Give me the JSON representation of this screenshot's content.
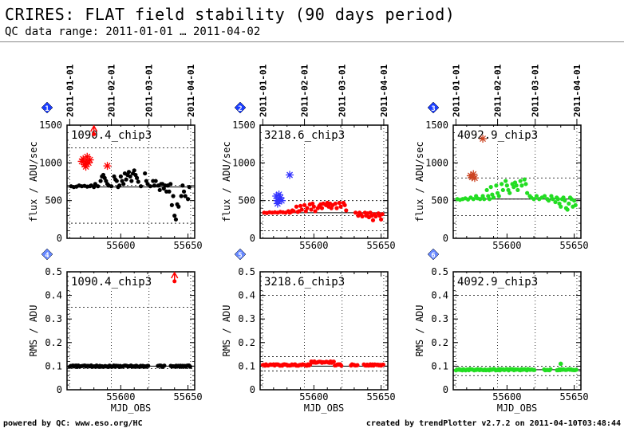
{
  "header": {
    "title": "CRIRES: FLAT field stability (90 days period)",
    "subtitle": "QC data range: 2011-01-01 … 2011-04-02"
  },
  "footer": {
    "left": "powered by QC: www.eso.org/HC",
    "right": "created by trendPlotter v2.7.2 on 2011-04-10T03:48:44"
  },
  "colors": {
    "black": "#000000",
    "red": "#ff0000",
    "green": "#22dd22",
    "blue": "#3333ff",
    "brown": "#cc4422",
    "badge": "#1a3dff",
    "badge_light": "#6688ff"
  },
  "chart_data": [
    {
      "panel": "1",
      "type": "scatter",
      "label": "1090.4_chip3",
      "color": "black",
      "ylabel": "flux / ADU/sec",
      "xlabel": "",
      "xlim": [
        55560,
        55655
      ],
      "ylim": [
        0,
        1500
      ],
      "yticks": [
        0,
        500,
        1000,
        1500
      ],
      "xticks": [
        55600,
        55650
      ],
      "date_ticks": [
        "2011-01-01",
        "2011-02-01",
        "2011-03-01",
        "2011-04-01"
      ],
      "hlines": [
        200,
        700,
        1200
      ],
      "refline": 680,
      "points": [
        [
          55563,
          690
        ],
        [
          55565,
          680
        ],
        [
          55567,
          685
        ],
        [
          55569,
          700
        ],
        [
          55571,
          690
        ],
        [
          55573,
          695
        ],
        [
          55575,
          685
        ],
        [
          55577,
          690
        ],
        [
          55578,
          700
        ],
        [
          55580,
          680
        ],
        [
          55581,
          720
        ],
        [
          55583,
          690
        ],
        [
          55585,
          760
        ],
        [
          55586,
          820
        ],
        [
          55587,
          840
        ],
        [
          55588,
          800
        ],
        [
          55589,
          760
        ],
        [
          55590,
          720
        ],
        [
          55591,
          700
        ],
        [
          55593,
          690
        ],
        [
          55595,
          820
        ],
        [
          55596,
          780
        ],
        [
          55597,
          760
        ],
        [
          55598,
          680
        ],
        [
          55599,
          700
        ],
        [
          55600,
          820
        ],
        [
          55601,
          760
        ],
        [
          55602,
          720
        ],
        [
          55603,
          860
        ],
        [
          55604,
          780
        ],
        [
          55605,
          840
        ],
        [
          55606,
          880
        ],
        [
          55607,
          820
        ],
        [
          55608,
          760
        ],
        [
          55609,
          860
        ],
        [
          55610,
          900
        ],
        [
          55611,
          840
        ],
        [
          55612,
          800
        ],
        [
          55613,
          750
        ],
        [
          55615,
          690
        ],
        [
          55618,
          860
        ],
        [
          55619,
          760
        ],
        [
          55620,
          720
        ],
        [
          55622,
          690
        ],
        [
          55624,
          760
        ],
        [
          55625,
          700
        ],
        [
          55626,
          760
        ],
        [
          55628,
          700
        ],
        [
          55629,
          640
        ],
        [
          55630,
          720
        ],
        [
          55631,
          720
        ],
        [
          55632,
          660
        ],
        [
          55633,
          700
        ],
        [
          55634,
          620
        ],
        [
          55635,
          700
        ],
        [
          55636,
          620
        ],
        [
          55637,
          720
        ],
        [
          55638,
          440
        ],
        [
          55639,
          560
        ],
        [
          55640,
          300
        ],
        [
          55641,
          250
        ],
        [
          55642,
          450
        ],
        [
          55643,
          420
        ],
        [
          55645,
          560
        ],
        [
          55646,
          700
        ],
        [
          55647,
          620
        ],
        [
          55648,
          560
        ],
        [
          55650,
          520
        ],
        [
          55651,
          680
        ]
      ],
      "outliers": [
        {
          "color": "red",
          "kind": "star",
          "points": [
            [
              55572,
              1050
            ],
            [
              55573,
              980
            ],
            [
              55574,
              1000
            ],
            [
              55575,
              1080
            ],
            [
              55576,
              1000
            ],
            [
              55571,
              1020
            ],
            [
              55574,
              950
            ],
            [
              55577,
              1040
            ],
            [
              55590,
              960
            ]
          ]
        },
        {
          "color": "red",
          "kind": "arrow",
          "points": [
            [
              55580,
              1380
            ]
          ]
        }
      ]
    },
    {
      "panel": "2",
      "type": "scatter",
      "label": "3218.6_chip3",
      "color": "red",
      "ylabel": "flux / ADU/sec",
      "xlabel": "",
      "xlim": [
        55560,
        55655
      ],
      "ylim": [
        0,
        1500
      ],
      "yticks": [
        0,
        500,
        1000,
        1500
      ],
      "xticks": [
        55600,
        55650
      ],
      "date_ticks": [
        "2011-01-01",
        "2011-02-01",
        "2011-03-01",
        "2011-04-01"
      ],
      "hlines": [
        100,
        300,
        500
      ],
      "refline": 340,
      "points": [
        [
          55563,
          340
        ],
        [
          55565,
          335
        ],
        [
          55567,
          345
        ],
        [
          55569,
          340
        ],
        [
          55571,
          345
        ],
        [
          55573,
          340
        ],
        [
          55575,
          350
        ],
        [
          55577,
          345
        ],
        [
          55579,
          340
        ],
        [
          55581,
          360
        ],
        [
          55582,
          340
        ],
        [
          55583,
          350
        ],
        [
          55584,
          370
        ],
        [
          55585,
          360
        ],
        [
          55587,
          420
        ],
        [
          55588,
          350
        ],
        [
          55589,
          360
        ],
        [
          55590,
          430
        ],
        [
          55591,
          380
        ],
        [
          55593,
          440
        ],
        [
          55594,
          360
        ],
        [
          55595,
          400
        ],
        [
          55597,
          450
        ],
        [
          55598,
          380
        ],
        [
          55599,
          460
        ],
        [
          55600,
          420
        ],
        [
          55601,
          360
        ],
        [
          55603,
          400
        ],
        [
          55604,
          430
        ],
        [
          55605,
          450
        ],
        [
          55606,
          400
        ],
        [
          55607,
          460
        ],
        [
          55609,
          440
        ],
        [
          55610,
          470
        ],
        [
          55611,
          420
        ],
        [
          55612,
          460
        ],
        [
          55613,
          400
        ],
        [
          55614,
          440
        ],
        [
          55616,
          460
        ],
        [
          55617,
          400
        ],
        [
          55619,
          470
        ],
        [
          55620,
          420
        ],
        [
          55622,
          470
        ],
        [
          55623,
          440
        ],
        [
          55624,
          370
        ],
        [
          55631,
          340
        ],
        [
          55633,
          300
        ],
        [
          55634,
          340
        ],
        [
          55635,
          320
        ],
        [
          55636,
          290
        ],
        [
          55638,
          340
        ],
        [
          55639,
          300
        ],
        [
          55640,
          330
        ],
        [
          55641,
          280
        ],
        [
          55642,
          340
        ],
        [
          55643,
          300
        ],
        [
          55644,
          240
        ],
        [
          55645,
          320
        ],
        [
          55646,
          290
        ],
        [
          55648,
          330
        ],
        [
          55649,
          300
        ],
        [
          55650,
          250
        ],
        [
          55651,
          320
        ]
      ],
      "outliers": [
        {
          "color": "blue",
          "kind": "star",
          "points": [
            [
              55572,
              560
            ],
            [
              55573,
              500
            ],
            [
              55574,
              520
            ],
            [
              55575,
              540
            ],
            [
              55576,
              500
            ],
            [
              55574,
              580
            ],
            [
              55573,
              460
            ],
            [
              55582,
              840
            ]
          ]
        }
      ]
    },
    {
      "panel": "3",
      "type": "scatter",
      "label": "4092.9_chip3",
      "color": "green",
      "ylabel": "flux / ADU/sec",
      "xlabel": "",
      "xlim": [
        55560,
        55655
      ],
      "ylim": [
        0,
        1500
      ],
      "yticks": [
        0,
        500,
        1000,
        1500
      ],
      "xticks": [
        55600,
        55650
      ],
      "date_ticks": [
        "2011-01-01",
        "2011-02-01",
        "2011-03-01",
        "2011-04-01"
      ],
      "hlines": [
        300,
        520,
        800
      ],
      "refline": 520,
      "points": [
        [
          55563,
          520
        ],
        [
          55565,
          510
        ],
        [
          55567,
          520
        ],
        [
          55569,
          530
        ],
        [
          55571,
          515
        ],
        [
          55573,
          540
        ],
        [
          55575,
          520
        ],
        [
          55577,
          560
        ],
        [
          55578,
          530
        ],
        [
          55580,
          520
        ],
        [
          55582,
          560
        ],
        [
          55583,
          520
        ],
        [
          55585,
          640
        ],
        [
          55586,
          560
        ],
        [
          55587,
          520
        ],
        [
          55588,
          680
        ],
        [
          55589,
          580
        ],
        [
          55590,
          540
        ],
        [
          55592,
          700
        ],
        [
          55593,
          600
        ],
        [
          55594,
          560
        ],
        [
          55596,
          720
        ],
        [
          55597,
          640
        ],
        [
          55599,
          760
        ],
        [
          55600,
          700
        ],
        [
          55601,
          640
        ],
        [
          55602,
          600
        ],
        [
          55604,
          720
        ],
        [
          55605,
          680
        ],
        [
          55606,
          740
        ],
        [
          55607,
          700
        ],
        [
          55608,
          640
        ],
        [
          55610,
          760
        ],
        [
          55611,
          700
        ],
        [
          55613,
          780
        ],
        [
          55614,
          720
        ],
        [
          55615,
          600
        ],
        [
          55617,
          560
        ],
        [
          55618,
          540
        ],
        [
          55620,
          520
        ],
        [
          55622,
          560
        ],
        [
          55624,
          520
        ],
        [
          55626,
          540
        ],
        [
          55628,
          560
        ],
        [
          55630,
          520
        ],
        [
          55631,
          500
        ],
        [
          55633,
          560
        ],
        [
          55634,
          520
        ],
        [
          55636,
          480
        ],
        [
          55637,
          540
        ],
        [
          55638,
          520
        ],
        [
          55639,
          460
        ],
        [
          55640,
          420
        ],
        [
          55641,
          520
        ],
        [
          55642,
          540
        ],
        [
          55643,
          500
        ],
        [
          55644,
          400
        ],
        [
          55645,
          380
        ],
        [
          55646,
          460
        ],
        [
          55647,
          540
        ],
        [
          55648,
          520
        ],
        [
          55649,
          420
        ],
        [
          55650,
          500
        ],
        [
          55651,
          440
        ]
      ],
      "outliers": [
        {
          "color": "brown",
          "kind": "star",
          "points": [
            [
              55573,
              830
            ],
            [
              55574,
              810
            ],
            [
              55575,
              850
            ],
            [
              55576,
              800
            ],
            [
              55582,
              1320
            ]
          ]
        }
      ]
    },
    {
      "panel": "4",
      "type": "scatter",
      "label": "1090.4_chip3",
      "color": "black",
      "ylabel": "RMS / ADU",
      "xlabel": "MJD_OBS",
      "xlim": [
        55560,
        55655
      ],
      "ylim": [
        0,
        0.5
      ],
      "yticks": [
        0,
        0.1,
        0.2,
        0.3,
        0.4,
        0.5
      ],
      "xticks": [
        55600,
        55650
      ],
      "hlines": [
        0.09,
        0.35
      ],
      "refline": 0.1,
      "points": "flat:0.1",
      "outliers": [
        {
          "color": "red",
          "kind": "arrow",
          "points": [
            [
              55640,
              0.46
            ]
          ]
        }
      ]
    },
    {
      "panel": "5",
      "type": "scatter",
      "label": "3218.6_chip3",
      "color": "red",
      "ylabel": "RMS / ADU",
      "xlabel": "MJD_OBS",
      "xlim": [
        55560,
        55655
      ],
      "ylim": [
        0,
        0.5
      ],
      "yticks": [
        0,
        0.1,
        0.2,
        0.3,
        0.4,
        0.5
      ],
      "xticks": [
        55600,
        55650
      ],
      "hlines": [
        0.08,
        0.14,
        0.4
      ],
      "refline": 0.1,
      "points": "bump:0.105",
      "outliers": []
    },
    {
      "panel": "6",
      "type": "scatter",
      "label": "4092.9_chip3",
      "color": "green",
      "ylabel": "RMS / ADU",
      "xlabel": "MJD_OBS",
      "xlim": [
        55560,
        55655
      ],
      "ylim": [
        0,
        0.5
      ],
      "yticks": [
        0,
        0.1,
        0.2,
        0.3,
        0.4,
        0.5
      ],
      "xticks": [
        55600,
        55650
      ],
      "hlines": [
        0.06,
        0.1,
        0.4
      ],
      "refline": 0.085,
      "points": "flat:0.085",
      "outliers": [
        {
          "color": "green",
          "kind": "dot",
          "points": [
            [
              55640,
              0.11
            ]
          ]
        }
      ]
    }
  ]
}
